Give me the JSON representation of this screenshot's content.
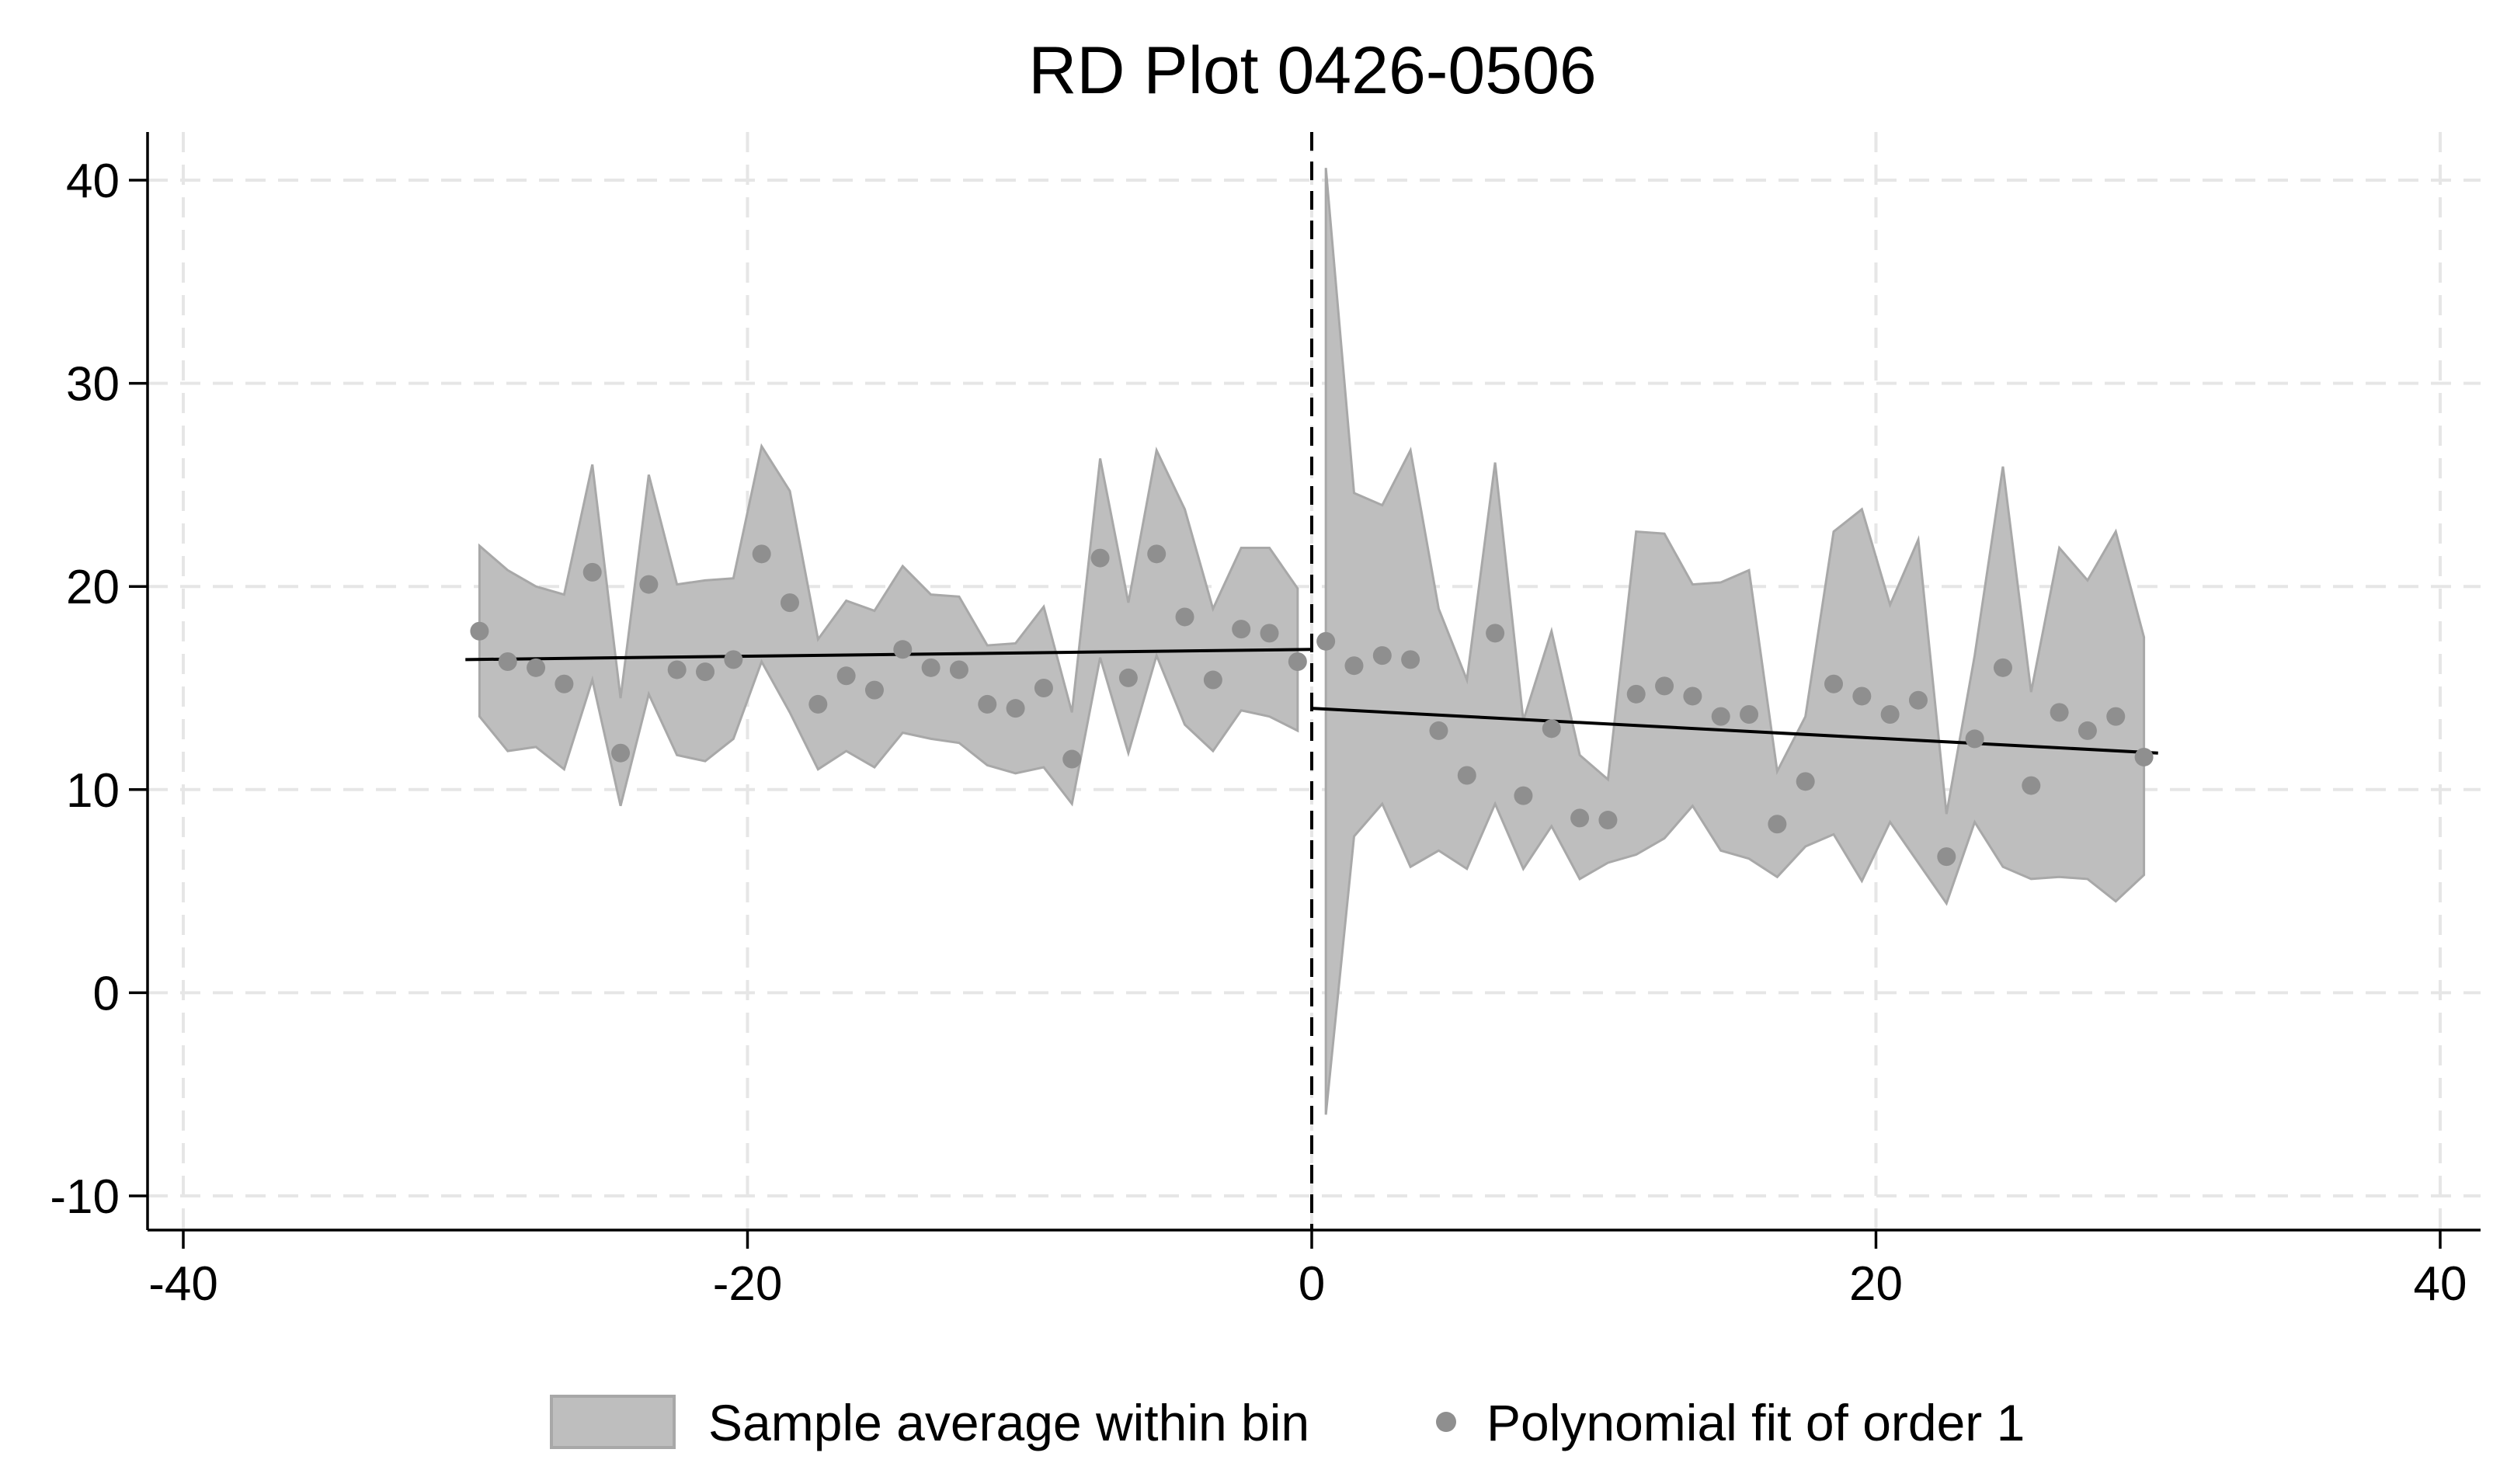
{
  "chart_data": {
    "type": "scatter",
    "title": "RD Plot 0426-0506",
    "xlabel": "",
    "ylabel": "",
    "xlim": [
      -40,
      40
    ],
    "ylim": [
      -10,
      40
    ],
    "x_ticks": [
      -40,
      -20,
      0,
      20,
      40
    ],
    "y_ticks": [
      -10,
      0,
      10,
      20,
      30,
      40
    ],
    "x_tick_labels": [
      "-40",
      "-20",
      "0",
      "20",
      "40"
    ],
    "y_tick_labels": [
      "-10",
      "0",
      "10",
      "20",
      "30",
      "40"
    ],
    "cutoff": 0,
    "grid": true,
    "legend_position": "bottom",
    "legend": {
      "band_label": "Sample average within bin",
      "points_label": "Polynomial fit of order 1"
    },
    "colors": {
      "band_fill": "#bebebe",
      "band_edge": "#a8a8a8",
      "points": "#8f8f8f",
      "fit_line": "#000000",
      "grid": "#e6e6e6"
    },
    "left": {
      "points": [
        [
          -29.5,
          17.8
        ],
        [
          -28.5,
          16.3
        ],
        [
          -27.5,
          16.0
        ],
        [
          -26.5,
          15.2
        ],
        [
          -25.5,
          20.7
        ],
        [
          -24.5,
          11.8
        ],
        [
          -23.5,
          20.1
        ],
        [
          -22.5,
          15.9
        ],
        [
          -21.5,
          15.8
        ],
        [
          -20.5,
          16.4
        ],
        [
          -19.5,
          21.6
        ],
        [
          -18.5,
          19.2
        ],
        [
          -17.5,
          14.2
        ],
        [
          -16.5,
          15.6
        ],
        [
          -15.5,
          14.9
        ],
        [
          -14.5,
          16.9
        ],
        [
          -13.5,
          16.0
        ],
        [
          -12.5,
          15.9
        ],
        [
          -11.5,
          14.2
        ],
        [
          -10.5,
          14.0
        ],
        [
          -9.5,
          15.0
        ],
        [
          -8.5,
          11.5
        ],
        [
          -7.5,
          21.4
        ],
        [
          -6.5,
          15.5
        ],
        [
          -5.5,
          21.6
        ],
        [
          -4.5,
          18.5
        ],
        [
          -3.5,
          15.4
        ],
        [
          -2.5,
          17.9
        ],
        [
          -1.5,
          17.7
        ],
        [
          -0.5,
          16.3
        ]
      ],
      "band_upper": [
        [
          -29.5,
          22.0
        ],
        [
          -28.5,
          20.8
        ],
        [
          -27.5,
          20.0
        ],
        [
          -26.5,
          19.6
        ],
        [
          -25.5,
          26.0
        ],
        [
          -24.5,
          14.5
        ],
        [
          -23.5,
          25.5
        ],
        [
          -22.5,
          20.1
        ],
        [
          -21.5,
          20.3
        ],
        [
          -20.5,
          20.4
        ],
        [
          -19.5,
          26.9
        ],
        [
          -18.5,
          24.7
        ],
        [
          -17.5,
          17.4
        ],
        [
          -16.5,
          19.3
        ],
        [
          -15.5,
          18.8
        ],
        [
          -14.5,
          21.0
        ],
        [
          -13.5,
          19.6
        ],
        [
          -12.5,
          19.5
        ],
        [
          -11.5,
          17.1
        ],
        [
          -10.5,
          17.2
        ],
        [
          -9.5,
          19.0
        ],
        [
          -8.5,
          13.8
        ],
        [
          -7.5,
          26.3
        ],
        [
          -6.5,
          19.2
        ],
        [
          -5.5,
          26.7
        ],
        [
          -4.5,
          23.8
        ],
        [
          -3.5,
          18.9
        ],
        [
          -2.5,
          21.9
        ],
        [
          -1.5,
          21.9
        ],
        [
          -0.5,
          19.9
        ]
      ],
      "band_lower": [
        [
          -29.5,
          13.6
        ],
        [
          -28.5,
          11.9
        ],
        [
          -27.5,
          12.1
        ],
        [
          -26.5,
          11.0
        ],
        [
          -25.5,
          15.4
        ],
        [
          -24.5,
          9.2
        ],
        [
          -23.5,
          14.7
        ],
        [
          -22.5,
          11.7
        ],
        [
          -21.5,
          11.4
        ],
        [
          -20.5,
          12.5
        ],
        [
          -19.5,
          16.3
        ],
        [
          -18.5,
          13.8
        ],
        [
          -17.5,
          11.0
        ],
        [
          -16.5,
          11.9
        ],
        [
          -15.5,
          11.1
        ],
        [
          -14.5,
          12.8
        ],
        [
          -13.5,
          12.5
        ],
        [
          -12.5,
          12.3
        ],
        [
          -11.5,
          11.2
        ],
        [
          -10.5,
          10.8
        ],
        [
          -9.5,
          11.1
        ],
        [
          -8.5,
          9.3
        ],
        [
          -7.5,
          16.5
        ],
        [
          -6.5,
          11.8
        ],
        [
          -5.5,
          16.6
        ],
        [
          -4.5,
          13.2
        ],
        [
          -3.5,
          11.9
        ],
        [
          -2.5,
          13.9
        ],
        [
          -1.5,
          13.6
        ],
        [
          -0.5,
          12.9
        ]
      ],
      "fit": [
        [
          -30,
          16.4
        ],
        [
          0,
          16.9
        ]
      ]
    },
    "right": {
      "points": [
        [
          0.5,
          17.3
        ],
        [
          1.5,
          16.1
        ],
        [
          2.5,
          16.6
        ],
        [
          3.5,
          16.4
        ],
        [
          4.5,
          12.9
        ],
        [
          5.5,
          10.7
        ],
        [
          6.5,
          17.7
        ],
        [
          7.5,
          9.7
        ],
        [
          8.5,
          13.0
        ],
        [
          9.5,
          8.6
        ],
        [
          10.5,
          8.5
        ],
        [
          11.5,
          14.7
        ],
        [
          12.5,
          15.1
        ],
        [
          13.5,
          14.6
        ],
        [
          14.5,
          13.6
        ],
        [
          15.5,
          13.7
        ],
        [
          16.5,
          8.3
        ],
        [
          17.5,
          10.4
        ],
        [
          18.5,
          15.2
        ],
        [
          19.5,
          14.6
        ],
        [
          20.5,
          13.7
        ],
        [
          21.5,
          14.4
        ],
        [
          22.5,
          6.7
        ],
        [
          23.5,
          12.5
        ],
        [
          24.5,
          16.0
        ],
        [
          25.5,
          10.2
        ],
        [
          26.5,
          13.8
        ],
        [
          27.5,
          12.9
        ],
        [
          28.5,
          13.6
        ],
        [
          29.5,
          11.6
        ]
      ],
      "band_upper": [
        [
          0.5,
          40.6
        ],
        [
          1.5,
          24.6
        ],
        [
          2.5,
          24.0
        ],
        [
          3.5,
          26.7
        ],
        [
          4.5,
          18.9
        ],
        [
          5.5,
          15.4
        ],
        [
          6.5,
          26.1
        ],
        [
          7.5,
          13.4
        ],
        [
          8.5,
          17.8
        ],
        [
          9.5,
          11.7
        ],
        [
          10.5,
          10.5
        ],
        [
          11.5,
          22.7
        ],
        [
          12.5,
          22.6
        ],
        [
          13.5,
          20.1
        ],
        [
          14.5,
          20.2
        ],
        [
          15.5,
          20.8
        ],
        [
          16.5,
          10.9
        ],
        [
          17.5,
          13.6
        ],
        [
          18.5,
          22.7
        ],
        [
          19.5,
          23.8
        ],
        [
          20.5,
          19.1
        ],
        [
          21.5,
          22.3
        ],
        [
          22.5,
          8.8
        ],
        [
          23.5,
          16.6
        ],
        [
          24.5,
          25.9
        ],
        [
          25.5,
          14.8
        ],
        [
          26.5,
          21.9
        ],
        [
          27.5,
          20.3
        ],
        [
          28.5,
          22.7
        ],
        [
          29.5,
          17.5
        ]
      ],
      "band_lower": [
        [
          0.5,
          -6.0
        ],
        [
          1.5,
          7.7
        ],
        [
          2.5,
          9.3
        ],
        [
          3.5,
          6.2
        ],
        [
          4.5,
          7.0
        ],
        [
          5.5,
          6.1
        ],
        [
          6.5,
          9.3
        ],
        [
          7.5,
          6.1
        ],
        [
          8.5,
          8.2
        ],
        [
          9.5,
          5.6
        ],
        [
          10.5,
          6.4
        ],
        [
          11.5,
          6.8
        ],
        [
          12.5,
          7.6
        ],
        [
          13.5,
          9.2
        ],
        [
          14.5,
          7.0
        ],
        [
          15.5,
          6.6
        ],
        [
          16.5,
          5.7
        ],
        [
          17.5,
          7.2
        ],
        [
          18.5,
          7.8
        ],
        [
          19.5,
          5.5
        ],
        [
          20.5,
          8.4
        ],
        [
          21.5,
          6.4
        ],
        [
          22.5,
          4.4
        ],
        [
          23.5,
          8.4
        ],
        [
          24.5,
          6.2
        ],
        [
          25.5,
          5.6
        ],
        [
          26.5,
          5.7
        ],
        [
          27.5,
          5.6
        ],
        [
          28.5,
          4.5
        ],
        [
          29.5,
          5.8
        ]
      ],
      "fit": [
        [
          0,
          14.0
        ],
        [
          30,
          11.8
        ]
      ]
    }
  }
}
